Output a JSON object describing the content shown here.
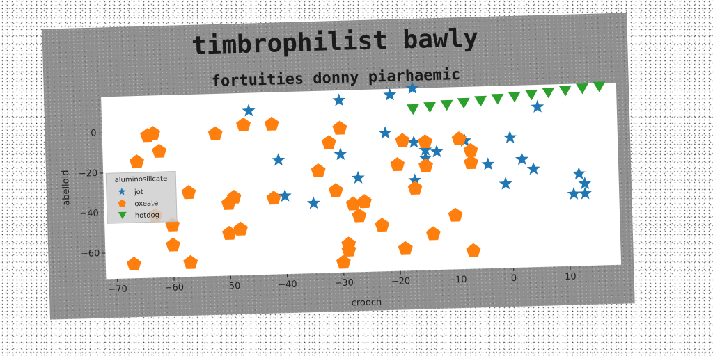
{
  "chart_data": {
    "type": "scatter",
    "title": "timbrophilist bawly",
    "subtitle": "fortuities donny piarhaemic",
    "xlabel": "crooch",
    "ylabel": "labelloid",
    "xlim": [
      -72,
      19
    ],
    "ylim": [
      -73,
      18
    ],
    "xticks": [
      -70,
      -60,
      -50,
      -40,
      -30,
      -20,
      -10,
      0,
      10
    ],
    "yticks": [
      0,
      -20,
      -40,
      -60
    ],
    "grid": false,
    "legend": {
      "title": "aluminosilicate",
      "placement": "center-left"
    },
    "series": [
      {
        "name": "jot",
        "marker": "star",
        "color": "#1f77b4",
        "points": [
          [
            -46,
            9
          ],
          [
            -30,
            13
          ],
          [
            -21,
            15
          ],
          [
            -17,
            18
          ],
          [
            5,
            7
          ],
          [
            -22,
            -4
          ],
          [
            -17,
            -9
          ],
          [
            -15,
            -13
          ],
          [
            -13,
            -14
          ],
          [
            -8,
            -9
          ],
          [
            0,
            -8
          ],
          [
            -30,
            -14
          ],
          [
            -41,
            -16
          ],
          [
            -15,
            -17
          ],
          [
            -4,
            -21
          ],
          [
            2,
            -19
          ],
          [
            4,
            -24
          ],
          [
            -27,
            -26
          ],
          [
            -17,
            -28
          ],
          [
            -1,
            -31
          ],
          [
            12,
            -27
          ],
          [
            13,
            -32
          ],
          [
            -40,
            -34
          ],
          [
            -35,
            -38
          ],
          [
            11,
            -37
          ],
          [
            13,
            -37
          ]
        ]
      },
      {
        "name": "oxeate",
        "marker": "pentagon",
        "color": "#ff7f0e",
        "points": [
          [
            -64,
            -2
          ],
          [
            -63,
            -1
          ],
          [
            -52,
            -2
          ],
          [
            -47,
            2
          ],
          [
            -42,
            2
          ],
          [
            -62,
            -10
          ],
          [
            -66,
            -15
          ],
          [
            -30,
            -1
          ],
          [
            -32,
            -8
          ],
          [
            -19,
            -8
          ],
          [
            -15,
            -9
          ],
          [
            -9,
            -8
          ],
          [
            -7,
            -14
          ],
          [
            -34,
            -22
          ],
          [
            -20,
            -20
          ],
          [
            -15,
            -21
          ],
          [
            -7,
            -20
          ],
          [
            -57,
            -31
          ],
          [
            -31,
            -32
          ],
          [
            -17,
            -32
          ],
          [
            -49,
            -34
          ],
          [
            -50,
            -37
          ],
          [
            -42,
            -35
          ],
          [
            -28,
            -39
          ],
          [
            -26,
            -38
          ],
          [
            -63,
            -42
          ],
          [
            -60,
            -47
          ],
          [
            -27,
            -45
          ],
          [
            -48,
            -50
          ],
          [
            -50,
            -52
          ],
          [
            -23,
            -50
          ],
          [
            -10,
            -46
          ],
          [
            -60,
            -57
          ],
          [
            -14,
            -55
          ],
          [
            -29,
            -59
          ],
          [
            -29,
            -62
          ],
          [
            -19,
            -62
          ],
          [
            -67,
            -66
          ],
          [
            -57,
            -66
          ],
          [
            -30,
            -68
          ],
          [
            -7,
            -64
          ]
        ]
      },
      {
        "name": "hotdog",
        "marker": "triangle-down",
        "color": "#2ca02c",
        "points": [
          [
            -17,
            7.5
          ],
          [
            -14,
            8.3
          ],
          [
            -11,
            9.1
          ],
          [
            -8,
            9.9
          ],
          [
            -5,
            10.7
          ],
          [
            -2,
            11.5
          ],
          [
            1,
            12.3
          ],
          [
            4,
            13.1
          ],
          [
            7,
            13.9
          ],
          [
            10,
            14.7
          ],
          [
            13,
            15.5
          ],
          [
            16,
            16.2
          ]
        ]
      }
    ]
  }
}
